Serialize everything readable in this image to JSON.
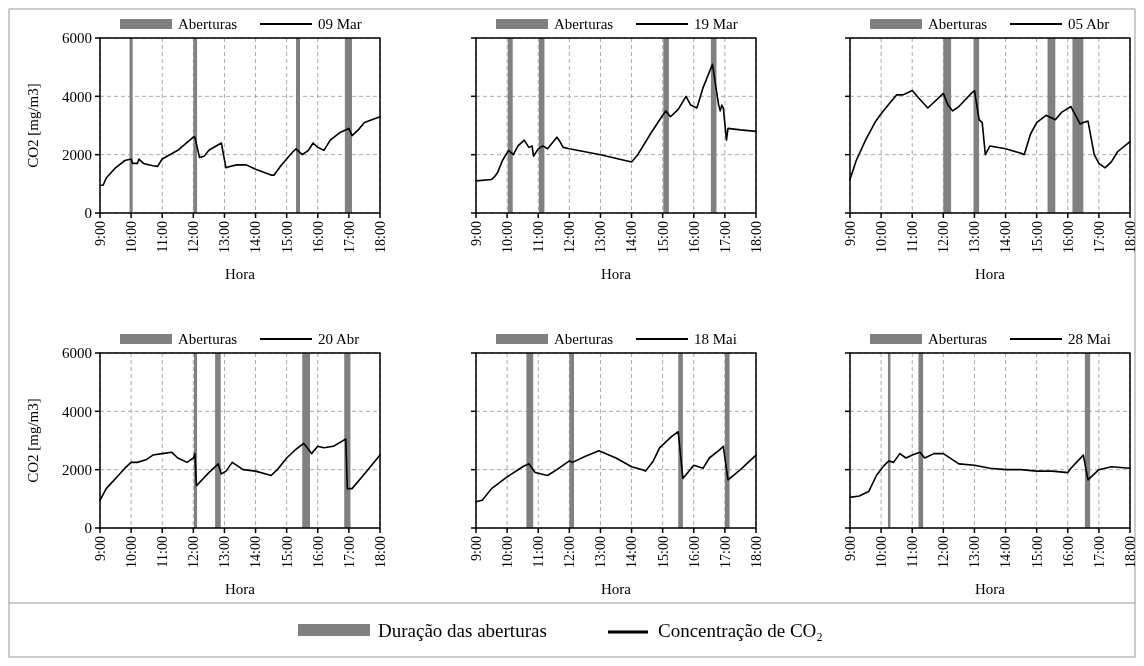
{
  "chart_data": [
    {
      "type": "line",
      "ylabel": "CO2 [mg/m3]",
      "xlabel": "Hora",
      "xlim": [
        9,
        18
      ],
      "ylim": [
        0,
        6000
      ],
      "yticks": [
        0,
        2000,
        4000,
        6000
      ],
      "xticks": [
        {
          "value": 9,
          "label": "9:00"
        },
        {
          "value": 10,
          "label": "10:00"
        },
        {
          "value": 11,
          "label": "11:00"
        },
        {
          "value": 12,
          "label": "12:00"
        },
        {
          "value": 13,
          "label": "13:00"
        },
        {
          "value": 14,
          "label": "14:00"
        },
        {
          "value": 15,
          "label": "15:00"
        },
        {
          "value": 16,
          "label": "16:00"
        },
        {
          "value": 17,
          "label": "17:00"
        },
        {
          "value": 18,
          "label": "18:00"
        }
      ],
      "grid": true,
      "legend": "top",
      "line_style": "solid",
      "bands": [
        {
          "axis": "x",
          "from": 9.95,
          "to": 10.05,
          "label": "Aberturas",
          "color": "#808080"
        },
        {
          "axis": "x",
          "from": 12.0,
          "to": 12.12,
          "color": "#808080"
        },
        {
          "axis": "x",
          "from": 15.3,
          "to": 15.43,
          "color": "#808080"
        },
        {
          "axis": "x",
          "from": 16.87,
          "to": 17.1,
          "color": "#808080"
        }
      ],
      "series": [
        {
          "name": "09 Mar",
          "color": "#000000",
          "x": [
            9.0,
            9.1,
            9.2,
            9.5,
            9.8,
            10.0,
            10.05,
            10.2,
            10.25,
            10.4,
            10.7,
            10.85,
            11.0,
            11.5,
            12.0,
            12.05,
            12.2,
            12.35,
            12.5,
            12.9,
            13.05,
            13.2,
            13.4,
            13.7,
            14.0,
            14.5,
            14.6,
            14.8,
            15.0,
            15.2,
            15.3,
            15.5,
            15.7,
            15.85,
            16.0,
            16.2,
            16.4,
            16.7,
            17.0,
            17.1,
            17.3,
            17.5,
            18.0
          ],
          "values": [
            950,
            950,
            1200,
            1550,
            1800,
            1850,
            1700,
            1700,
            1850,
            1700,
            1620,
            1600,
            1850,
            2150,
            2600,
            2600,
            1900,
            1950,
            2150,
            2400,
            1550,
            1600,
            1650,
            1650,
            1500,
            1300,
            1300,
            1600,
            1850,
            2100,
            2200,
            2000,
            2150,
            2400,
            2250,
            2150,
            2500,
            2750,
            2900,
            2650,
            2850,
            3100,
            3300
          ]
        }
      ]
    },
    {
      "type": "line",
      "xlabel": "Hora",
      "xlim": [
        9,
        18
      ],
      "ylim": [
        0,
        6000
      ],
      "yticks": [
        0,
        2000,
        4000,
        6000
      ],
      "xticks": [
        {
          "value": 9,
          "label": "9:00"
        },
        {
          "value": 10,
          "label": "10:00"
        },
        {
          "value": 11,
          "label": "11:00"
        },
        {
          "value": 12,
          "label": "12:00"
        },
        {
          "value": 13,
          "label": "13:00"
        },
        {
          "value": 14,
          "label": "14:00"
        },
        {
          "value": 15,
          "label": "15:00"
        },
        {
          "value": 16,
          "label": "16:00"
        },
        {
          "value": 17,
          "label": "17:00"
        },
        {
          "value": 18,
          "label": "18:00"
        }
      ],
      "grid": true,
      "legend": "top",
      "line_style": "solid",
      "tick_labels": "x",
      "bands": [
        {
          "axis": "x",
          "from": 10.02,
          "to": 10.18,
          "label": "Aberturas",
          "color": "#808080"
        },
        {
          "axis": "x",
          "from": 11.02,
          "to": 11.2,
          "color": "#808080"
        },
        {
          "axis": "x",
          "from": 15.02,
          "to": 15.2,
          "color": "#808080"
        },
        {
          "axis": "x",
          "from": 16.55,
          "to": 16.73,
          "color": "#808080"
        }
      ],
      "series": [
        {
          "name": "19 Mar",
          "color": "#000000",
          "x": [
            9.0,
            9.5,
            9.6,
            9.7,
            9.85,
            10.05,
            10.2,
            10.35,
            10.55,
            10.7,
            10.8,
            10.85,
            11.0,
            11.15,
            11.3,
            11.6,
            11.7,
            11.8,
            12.0,
            13.0,
            14.0,
            14.2,
            14.6,
            15.0,
            15.1,
            15.25,
            15.5,
            15.75,
            15.9,
            16.1,
            16.3,
            16.6,
            16.8,
            16.85,
            16.9,
            16.95,
            17.05,
            17.1,
            17.5,
            18.0
          ],
          "values": [
            1100,
            1150,
            1250,
            1400,
            1800,
            2150,
            2000,
            2300,
            2500,
            2250,
            2300,
            1950,
            2200,
            2300,
            2200,
            2600,
            2450,
            2250,
            2200,
            2000,
            1750,
            2000,
            2700,
            3350,
            3500,
            3300,
            3550,
            4000,
            3700,
            3600,
            4300,
            5100,
            3700,
            3500,
            3700,
            3600,
            2500,
            2900,
            2850,
            2800
          ]
        }
      ]
    },
    {
      "type": "line",
      "xlabel": "Hora",
      "xlim": [
        9,
        18
      ],
      "ylim": [
        0,
        6000
      ],
      "yticks": [
        0,
        2000,
        4000,
        6000
      ],
      "xticks": [
        {
          "value": 9,
          "label": "9:00"
        },
        {
          "value": 10,
          "label": "10:00"
        },
        {
          "value": 11,
          "label": "11:00"
        },
        {
          "value": 12,
          "label": "12:00"
        },
        {
          "value": 13,
          "label": "13:00"
        },
        {
          "value": 14,
          "label": "14:00"
        },
        {
          "value": 15,
          "label": "15:00"
        },
        {
          "value": 16,
          "label": "16:00"
        },
        {
          "value": 17,
          "label": "17:00"
        },
        {
          "value": 18,
          "label": "18:00"
        }
      ],
      "grid": true,
      "legend": "top",
      "line_style": "solid",
      "tick_labels": "x",
      "bands": [
        {
          "axis": "x",
          "from": 12.0,
          "to": 12.25,
          "label": "Aberturas",
          "color": "#808080"
        },
        {
          "axis": "x",
          "from": 12.97,
          "to": 13.15,
          "color": "#808080"
        },
        {
          "axis": "x",
          "from": 15.35,
          "to": 15.6,
          "color": "#808080"
        },
        {
          "axis": "x",
          "from": 16.15,
          "to": 16.5,
          "color": "#808080"
        }
      ],
      "series": [
        {
          "name": "05 Abr",
          "color": "#000000",
          "x": [
            9.0,
            9.2,
            9.5,
            9.8,
            10.0,
            10.3,
            10.5,
            10.7,
            10.8,
            11.0,
            11.2,
            11.5,
            11.9,
            12.0,
            12.15,
            12.3,
            12.5,
            12.9,
            13.0,
            13.15,
            13.25,
            13.35,
            13.5,
            14.0,
            14.5,
            14.6,
            14.8,
            15.0,
            15.3,
            15.6,
            15.8,
            16.1,
            16.4,
            16.5,
            16.65,
            16.85,
            17.0,
            17.2,
            17.4,
            17.6,
            18.0
          ],
          "values": [
            1150,
            1800,
            2500,
            3100,
            3400,
            3800,
            4050,
            4050,
            4100,
            4200,
            3950,
            3600,
            4000,
            4100,
            3700,
            3500,
            3650,
            4100,
            4200,
            3200,
            3100,
            2000,
            2300,
            2200,
            2050,
            2000,
            2700,
            3100,
            3350,
            3200,
            3450,
            3650,
            3050,
            3100,
            3150,
            2000,
            1700,
            1550,
            1750,
            2100,
            2450
          ]
        }
      ]
    },
    {
      "type": "line",
      "ylabel": "CO2 [mg/m3]",
      "xlabel": "Hora",
      "xlim": [
        9,
        18
      ],
      "ylim": [
        0,
        6000
      ],
      "yticks": [
        0,
        2000,
        4000,
        6000
      ],
      "xticks": [
        {
          "value": 9,
          "label": "9:00"
        },
        {
          "value": 10,
          "label": "10:00"
        },
        {
          "value": 11,
          "label": "11:00"
        },
        {
          "value": 12,
          "label": "12:00"
        },
        {
          "value": 13,
          "label": "13:00"
        },
        {
          "value": 14,
          "label": "14:00"
        },
        {
          "value": 15,
          "label": "15:00"
        },
        {
          "value": 16,
          "label": "16:00"
        },
        {
          "value": 17,
          "label": "17:00"
        },
        {
          "value": 18,
          "label": "18:00"
        }
      ],
      "grid": true,
      "legend": "top",
      "line_style": "solid",
      "bands": [
        {
          "axis": "x",
          "from": 12.02,
          "to": 12.12,
          "label": "Aberturas",
          "color": "#808080"
        },
        {
          "axis": "x",
          "from": 12.7,
          "to": 12.88,
          "color": "#808080"
        },
        {
          "axis": "x",
          "from": 15.5,
          "to": 15.75,
          "color": "#808080"
        },
        {
          "axis": "x",
          "from": 16.85,
          "to": 17.05,
          "color": "#808080"
        }
      ],
      "series": [
        {
          "name": "20 Abr",
          "color": "#000000",
          "x": [
            9.0,
            9.2,
            9.5,
            9.8,
            10.0,
            10.2,
            10.5,
            10.7,
            11.0,
            11.3,
            11.5,
            11.8,
            12.0,
            12.05,
            12.1,
            12.5,
            12.8,
            12.9,
            13.05,
            13.25,
            13.6,
            14.0,
            14.5,
            14.7,
            15.0,
            15.3,
            15.55,
            15.7,
            15.8,
            16.0,
            16.2,
            16.5,
            16.9,
            16.95,
            17.1,
            17.5,
            18.0
          ],
          "values": [
            950,
            1350,
            1700,
            2050,
            2250,
            2250,
            2350,
            2500,
            2550,
            2600,
            2400,
            2250,
            2400,
            2550,
            1450,
            1900,
            2200,
            1850,
            1950,
            2250,
            2000,
            1950,
            1800,
            2000,
            2400,
            2700,
            2900,
            2700,
            2550,
            2800,
            2750,
            2800,
            3050,
            1350,
            1350,
            1850,
            2500
          ]
        }
      ]
    },
    {
      "type": "line",
      "xlabel": "Hora",
      "xlim": [
        9,
        18
      ],
      "ylim": [
        0,
        6000
      ],
      "yticks": [
        0,
        2000,
        4000,
        6000
      ],
      "xticks": [
        {
          "value": 9,
          "label": "9:00"
        },
        {
          "value": 10,
          "label": "10:00"
        },
        {
          "value": 11,
          "label": "11:00"
        },
        {
          "value": 12,
          "label": "12:00"
        },
        {
          "value": 13,
          "label": "13:00"
        },
        {
          "value": 14,
          "label": "14:00"
        },
        {
          "value": 15,
          "label": "15:00"
        },
        {
          "value": 16,
          "label": "16:00"
        },
        {
          "value": 17,
          "label": "17:00"
        },
        {
          "value": 18,
          "label": "18:00"
        }
      ],
      "grid": true,
      "legend": "top",
      "line_style": "solid",
      "tick_labels": "x",
      "bands": [
        {
          "axis": "x",
          "from": 10.62,
          "to": 10.84,
          "label": "Aberturas",
          "color": "#808080"
        },
        {
          "axis": "x",
          "from": 12.0,
          "to": 12.15,
          "color": "#808080"
        },
        {
          "axis": "x",
          "from": 15.5,
          "to": 15.65,
          "color": "#808080"
        },
        {
          "axis": "x",
          "from": 17.0,
          "to": 17.15,
          "color": "#808080"
        }
      ],
      "series": [
        {
          "name": "18 Mai",
          "color": "#000000",
          "x": [
            9.0,
            9.2,
            9.5,
            10.0,
            10.5,
            10.7,
            10.9,
            11.3,
            11.6,
            12.0,
            12.1,
            12.5,
            12.95,
            13.5,
            14.0,
            14.35,
            14.45,
            14.7,
            14.9,
            15.3,
            15.5,
            15.65,
            16.0,
            16.3,
            16.5,
            16.8,
            16.95,
            17.1,
            17.5,
            18.0
          ],
          "values": [
            900,
            950,
            1350,
            1750,
            2100,
            2200,
            1900,
            1800,
            2000,
            2300,
            2250,
            2450,
            2650,
            2400,
            2100,
            2000,
            1950,
            2300,
            2750,
            3150,
            3300,
            1700,
            2150,
            2050,
            2400,
            2650,
            2800,
            1650,
            2000,
            2500
          ]
        }
      ]
    },
    {
      "type": "line",
      "xlabel": "Hora",
      "xlim": [
        9,
        18
      ],
      "ylim": [
        0,
        6000
      ],
      "yticks": [
        0,
        2000,
        4000,
        6000
      ],
      "xticks": [
        {
          "value": 9,
          "label": "9:00"
        },
        {
          "value": 10,
          "label": "10:00"
        },
        {
          "value": 11,
          "label": "11:00"
        },
        {
          "value": 12,
          "label": "12:00"
        },
        {
          "value": 13,
          "label": "13:00"
        },
        {
          "value": 14,
          "label": "14:00"
        },
        {
          "value": 15,
          "label": "15:00"
        },
        {
          "value": 16,
          "label": "16:00"
        },
        {
          "value": 17,
          "label": "17:00"
        },
        {
          "value": 18,
          "label": "18:00"
        }
      ],
      "grid": true,
      "legend": "top",
      "line_style": "solid",
      "tick_labels": "x",
      "bands": [
        {
          "axis": "x",
          "from": 10.22,
          "to": 10.3,
          "label": "Aberturas",
          "color": "#808080"
        },
        {
          "axis": "x",
          "from": 11.2,
          "to": 11.35,
          "color": "#808080"
        },
        {
          "axis": "x",
          "from": 16.55,
          "to": 16.72,
          "color": "#808080"
        }
      ],
      "annotations": [
        "Duração das aberturas",
        "Concentração de CO₂"
      ],
      "series": [
        {
          "name": "28 Mai",
          "color": "#000000",
          "x": [
            9.0,
            9.3,
            9.6,
            9.85,
            10.1,
            10.25,
            10.4,
            10.6,
            10.8,
            11.0,
            11.25,
            11.4,
            11.7,
            12.0,
            12.5,
            13.0,
            13.5,
            14.0,
            14.5,
            15.0,
            15.5,
            16.0,
            16.1,
            16.5,
            16.65,
            17.0,
            17.4,
            18.0
          ],
          "values": [
            1050,
            1100,
            1250,
            1800,
            2150,
            2300,
            2250,
            2550,
            2400,
            2500,
            2600,
            2400,
            2550,
            2550,
            2200,
            2150,
            2050,
            2000,
            2000,
            1950,
            1950,
            1900,
            2050,
            2500,
            1650,
            2000,
            2100,
            2050
          ]
        }
      ]
    }
  ]
}
